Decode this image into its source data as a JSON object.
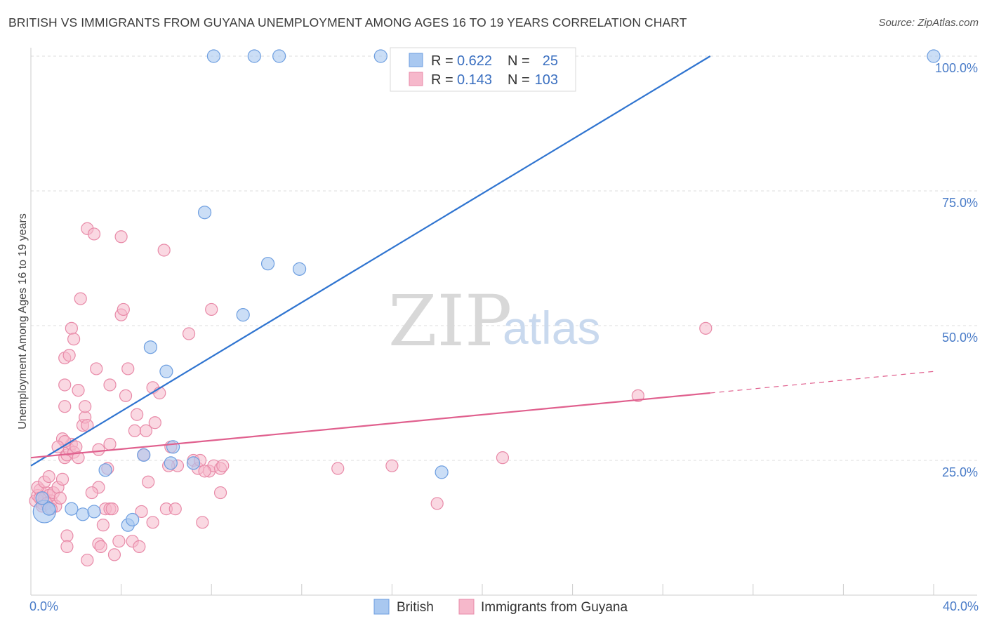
{
  "title": "BRITISH VS IMMIGRANTS FROM GUYANA UNEMPLOYMENT AMONG AGES 16 TO 19 YEARS CORRELATION CHART",
  "source": "Source: ZipAtlas.com",
  "watermark": {
    "zip": "ZIP",
    "atlas": "atlas"
  },
  "colors": {
    "british_fill": "#a9c8f0",
    "british_stroke": "#6d9ee0",
    "british_line": "#2f74d0",
    "guyana_fill": "#f6b8cb",
    "guyana_stroke": "#e88aa8",
    "guyana_line": "#e0608e",
    "grid": "#dddddd",
    "tick_label": "#4a7cc8"
  },
  "legend_top": {
    "rows": [
      {
        "r_label": "R =",
        "r_value": "0.622",
        "n_label": "N =",
        "n_value": "25"
      },
      {
        "r_label": "R =",
        "r_value": "0.143",
        "n_label": "N =",
        "n_value": "103"
      }
    ]
  },
  "chart_data": {
    "type": "scatter",
    "title": "BRITISH VS IMMIGRANTS FROM GUYANA UNEMPLOYMENT AMONG AGES 16 TO 19 YEARS CORRELATION CHART",
    "xlabel": "",
    "ylabel": "Unemployment Among Ages 16 to 19 years",
    "xlim": [
      0,
      40
    ],
    "ylim": [
      0,
      100
    ],
    "x_tick_labels": [
      {
        "value": 0,
        "label": "0.0%"
      },
      {
        "value": 40,
        "label": "40.0%"
      }
    ],
    "y_tick_labels": [
      {
        "value": 25,
        "label": "25.0%"
      },
      {
        "value": 50,
        "label": "50.0%"
      },
      {
        "value": 75,
        "label": "75.0%"
      },
      {
        "value": 100,
        "label": "100.0%"
      }
    ],
    "grid": "horizontal dashed",
    "legend_position": "bottom-center",
    "series": [
      {
        "name": "British",
        "r": 0.622,
        "n": 25,
        "trend": {
          "x0": 0,
          "y0": 24,
          "x1": 30.1,
          "y1": 100
        },
        "points": [
          [
            0.6,
            15.5
          ],
          [
            0.8,
            16.0
          ],
          [
            1.8,
            16.0
          ],
          [
            2.3,
            15.0
          ],
          [
            2.8,
            15.5
          ],
          [
            3.3,
            23.2
          ],
          [
            4.3,
            13.0
          ],
          [
            4.5,
            14.0
          ],
          [
            5.3,
            46.0
          ],
          [
            6.0,
            41.5
          ],
          [
            7.7,
            71.0
          ],
          [
            7.2,
            24.5
          ],
          [
            6.2,
            24.5
          ],
          [
            6.3,
            27.5
          ],
          [
            5.0,
            26.0
          ],
          [
            9.4,
            52.0
          ],
          [
            10.5,
            61.5
          ],
          [
            11.9,
            60.5
          ],
          [
            8.1,
            100
          ],
          [
            9.9,
            100
          ],
          [
            11.0,
            100
          ],
          [
            15.5,
            100
          ],
          [
            40.0,
            100
          ],
          [
            0.5,
            18.0
          ],
          [
            18.2,
            22.8
          ]
        ],
        "sizes": [
          16,
          9,
          9,
          9,
          9,
          9,
          9,
          9,
          9,
          9,
          9,
          9,
          9,
          9,
          9,
          9,
          9,
          9,
          9,
          9,
          9,
          9,
          9,
          9,
          9
        ]
      },
      {
        "name": "Immigrants from Guyana",
        "r": 0.143,
        "n": 103,
        "trend": {
          "x0": 0,
          "y0": 25.5,
          "x1": 30.1,
          "y1": 37.5
        },
        "trend_dashed": {
          "x0": 30.1,
          "y0": 37.5,
          "x1": 40,
          "y1": 41.5
        },
        "points": [
          [
            0.2,
            17.5
          ],
          [
            0.3,
            18.5
          ],
          [
            0.4,
            19.5
          ],
          [
            0.5,
            17.0
          ],
          [
            0.6,
            18.0
          ],
          [
            0.7,
            19.0
          ],
          [
            0.8,
            18.5
          ],
          [
            0.9,
            17.5
          ],
          [
            0.3,
            20.0
          ],
          [
            0.5,
            16.5
          ],
          [
            0.6,
            21.0
          ],
          [
            0.8,
            22.0
          ],
          [
            1.0,
            19.0
          ],
          [
            0.4,
            18.0
          ],
          [
            0.7,
            17.0
          ],
          [
            1.1,
            16.5
          ],
          [
            1.2,
            20.0
          ],
          [
            1.3,
            18.0
          ],
          [
            0.9,
            16.0
          ],
          [
            1.4,
            21.5
          ],
          [
            1.5,
            25.5
          ],
          [
            1.6,
            26.0
          ],
          [
            1.7,
            27.0
          ],
          [
            1.8,
            28.0
          ],
          [
            1.9,
            26.5
          ],
          [
            2.0,
            27.5
          ],
          [
            1.4,
            29.0
          ],
          [
            1.5,
            28.5
          ],
          [
            1.2,
            27.5
          ],
          [
            2.1,
            25.5
          ],
          [
            1.5,
            35.0
          ],
          [
            1.5,
            39.0
          ],
          [
            1.5,
            44.0
          ],
          [
            1.7,
            44.5
          ],
          [
            1.8,
            49.5
          ],
          [
            1.9,
            47.5
          ],
          [
            2.1,
            38.0
          ],
          [
            2.2,
            55.0
          ],
          [
            2.3,
            31.5
          ],
          [
            2.4,
            33.0
          ],
          [
            2.4,
            35.0
          ],
          [
            2.5,
            31.5
          ],
          [
            2.5,
            68.0
          ],
          [
            2.8,
            67.0
          ],
          [
            2.9,
            42.0
          ],
          [
            3.0,
            27.0
          ],
          [
            3.0,
            20.0
          ],
          [
            2.7,
            19.0
          ],
          [
            3.4,
            23.5
          ],
          [
            3.3,
            16.0
          ],
          [
            3.2,
            13.0
          ],
          [
            3.0,
            9.5
          ],
          [
            3.1,
            9.0
          ],
          [
            2.5,
            6.5
          ],
          [
            1.6,
            11.0
          ],
          [
            1.6,
            9.0
          ],
          [
            3.5,
            16.0
          ],
          [
            3.6,
            16.0
          ],
          [
            3.7,
            7.5
          ],
          [
            3.9,
            10.0
          ],
          [
            4.0,
            52.0
          ],
          [
            4.1,
            53.0
          ],
          [
            4.0,
            66.5
          ],
          [
            4.2,
            37.0
          ],
          [
            4.3,
            42.0
          ],
          [
            3.5,
            28.0
          ],
          [
            3.5,
            39.0
          ],
          [
            4.5,
            10.0
          ],
          [
            4.6,
            30.5
          ],
          [
            4.8,
            9.0
          ],
          [
            4.9,
            15.5
          ],
          [
            4.7,
            33.5
          ],
          [
            5.0,
            26.0
          ],
          [
            5.1,
            30.5
          ],
          [
            5.2,
            21.0
          ],
          [
            5.4,
            13.5
          ],
          [
            5.5,
            32.0
          ],
          [
            5.4,
            38.5
          ],
          [
            5.7,
            37.5
          ],
          [
            5.9,
            64.0
          ],
          [
            6.0,
            16.0
          ],
          [
            6.2,
            27.5
          ],
          [
            6.4,
            16.0
          ],
          [
            6.5,
            24.0
          ],
          [
            7.0,
            48.5
          ],
          [
            7.2,
            25.0
          ],
          [
            7.4,
            23.5
          ],
          [
            7.6,
            13.5
          ],
          [
            7.9,
            23.0
          ],
          [
            8.0,
            53.0
          ],
          [
            8.1,
            24.0
          ],
          [
            8.4,
            19.0
          ],
          [
            8.4,
            23.5
          ],
          [
            7.5,
            25.0
          ],
          [
            8.5,
            24.0
          ],
          [
            13.6,
            23.5
          ],
          [
            16.0,
            24.0
          ],
          [
            18.0,
            17.0
          ],
          [
            20.9,
            25.5
          ],
          [
            26.9,
            37.0
          ],
          [
            29.9,
            49.5
          ],
          [
            7.7,
            23.0
          ],
          [
            6.1,
            24.0
          ]
        ]
      }
    ]
  },
  "bottom_legend": {
    "items": [
      {
        "label": "British"
      },
      {
        "label": "Immigrants from Guyana"
      }
    ]
  }
}
